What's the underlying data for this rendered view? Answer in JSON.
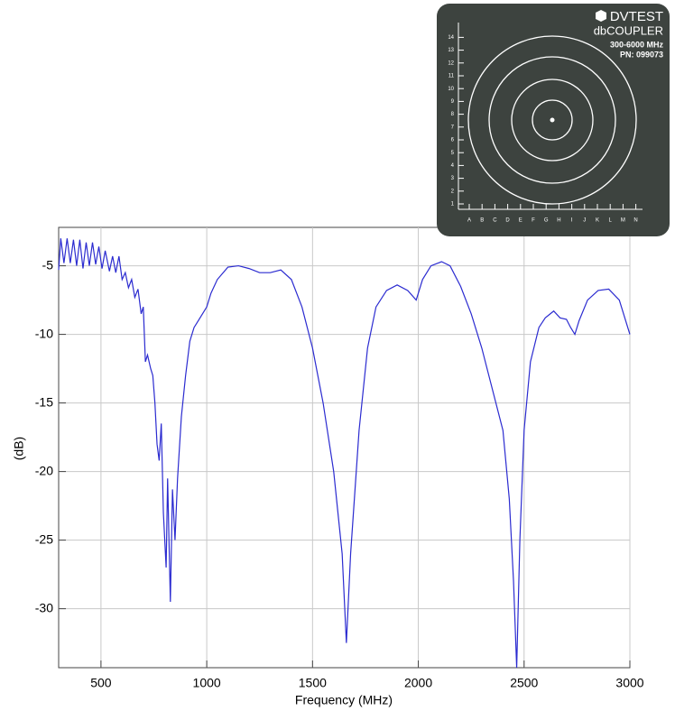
{
  "chart_data": {
    "type": "line",
    "y_label": "(dB)",
    "x_label": "Frequency (MHz)",
    "color": "#2b2bd0",
    "xlim": [
      300,
      3000
    ],
    "xticks": [
      500,
      1000,
      1500,
      2000,
      2500,
      3000
    ],
    "ylim": [
      -34.3,
      -2.2
    ],
    "yticks": [
      -5,
      -10,
      -15,
      -20,
      -25,
      -30
    ],
    "grid": true,
    "x": [
      300,
      310,
      325,
      340,
      355,
      370,
      385,
      400,
      415,
      430,
      445,
      460,
      475,
      490,
      505,
      520,
      540,
      555,
      570,
      585,
      600,
      615,
      630,
      645,
      660,
      675,
      690,
      700,
      710,
      720,
      735,
      745,
      755,
      765,
      775,
      785,
      795,
      808,
      815,
      828,
      838,
      850,
      862,
      880,
      900,
      920,
      940,
      960,
      980,
      1000,
      1020,
      1050,
      1100,
      1150,
      1200,
      1250,
      1300,
      1350,
      1400,
      1450,
      1500,
      1550,
      1600,
      1640,
      1660,
      1680,
      1720,
      1760,
      1800,
      1850,
      1900,
      1950,
      1990,
      2020,
      2060,
      2110,
      2150,
      2200,
      2250,
      2300,
      2350,
      2400,
      2430,
      2450,
      2465,
      2480,
      2500,
      2530,
      2570,
      2600,
      2640,
      2670,
      2700,
      2720,
      2740,
      2760,
      2800,
      2850,
      2900,
      2950,
      3000
    ],
    "values": [
      -5.3,
      -3,
      -4.8,
      -3,
      -4.8,
      -3.1,
      -5,
      -3.1,
      -5.2,
      -3.3,
      -5,
      -3.3,
      -4.9,
      -3.6,
      -5.2,
      -3.9,
      -5.4,
      -4.3,
      -5.5,
      -4.3,
      -6,
      -5.5,
      -6.6,
      -6,
      -7.3,
      -6.7,
      -8.5,
      -8,
      -12,
      -11.5,
      -12.5,
      -13,
      -15,
      -18,
      -19.2,
      -16.5,
      -23,
      -27,
      -20.5,
      -29.5,
      -21.3,
      -25,
      -20.5,
      -16,
      -13,
      -10.5,
      -9.5,
      -9,
      -8.5,
      -8,
      -7,
      -6,
      -5.1,
      -5,
      -5.2,
      -5.5,
      -5.5,
      -5.3,
      -6,
      -8,
      -11,
      -15,
      -20,
      -26,
      -32.5,
      -26,
      -17,
      -11,
      -8,
      -6.8,
      -6.4,
      -6.8,
      -7.5,
      -6,
      -5,
      -4.7,
      -5,
      -6.5,
      -8.5,
      -11,
      -14,
      -17,
      -22,
      -28,
      -34.3,
      -25,
      -17,
      -12,
      -9.5,
      -8.8,
      -8.3,
      -8.8,
      -8.9,
      -9.5,
      -10,
      -9,
      -7.5,
      -6.8,
      -6.7,
      -7.5,
      -10
    ]
  },
  "inset": {
    "brand": "DVTEST",
    "product": "dbCOUPLER",
    "range": "300-6000 MHz",
    "pn": "PN: 099073",
    "rows": [
      "1",
      "2",
      "3",
      "4",
      "5",
      "6",
      "7",
      "8",
      "9",
      "10",
      "11",
      "12",
      "13",
      "14"
    ],
    "cols": [
      "A",
      "B",
      "C",
      "D",
      "E",
      "F",
      "G",
      "H",
      "I",
      "J",
      "K",
      "L",
      "M",
      "N"
    ]
  }
}
